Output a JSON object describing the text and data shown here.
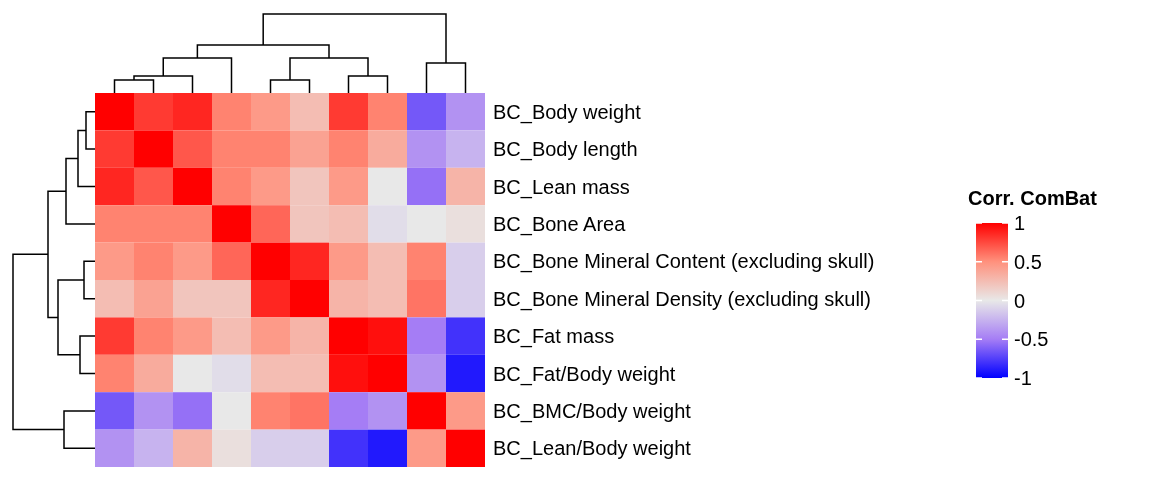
{
  "chart_data": {
    "type": "heatmap",
    "legend_title": "Corr. ComBat",
    "categories": [
      null,
      null,
      null,
      null,
      null,
      null,
      null,
      null,
      null,
      null
    ],
    "y_categories": [
      "BC_Body weight",
      "BC_Body length",
      "BC_Lean mass",
      "BC_Bone Area",
      "BC_Bone Mineral Content (excluding skull)",
      "BC_Bone Mineral Density (excluding skull)",
      "BC_Fat mass",
      "BC_Fat/Body weight",
      "BC_BMC/Body weight",
      "BC_Lean/Body weight"
    ],
    "cells": [
      [
        1,
        0.8,
        0.87,
        0.55,
        0.45,
        0.25,
        0.8,
        0.55,
        -0.65,
        -0.4
      ],
      [
        0.8,
        1,
        0.7,
        0.55,
        0.55,
        0.4,
        0.55,
        0.35,
        -0.4,
        -0.25
      ],
      [
        0.87,
        0.7,
        1,
        0.55,
        0.45,
        0.2,
        0.45,
        0,
        -0.55,
        0.3
      ],
      [
        0.55,
        0.55,
        0.55,
        1,
        0.65,
        0.2,
        0.25,
        -0.05,
        0,
        0.05
      ],
      [
        0.45,
        0.55,
        0.45,
        0.65,
        1,
        0.87,
        0.45,
        0.25,
        0.55,
        -0.12
      ],
      [
        0.25,
        0.4,
        0.2,
        0.2,
        0.87,
        1,
        0.3,
        0.25,
        0.6,
        -0.12
      ],
      [
        0.8,
        0.55,
        0.45,
        0.25,
        0.45,
        0.3,
        1,
        0.95,
        -0.5,
        -0.8
      ],
      [
        0.55,
        0.35,
        0,
        -0.05,
        0.25,
        0.25,
        0.95,
        1,
        -0.4,
        -0.9
      ],
      [
        -0.65,
        -0.4,
        -0.55,
        0,
        0.55,
        0.6,
        -0.5,
        -0.4,
        1,
        0.45
      ],
      [
        -0.4,
        -0.25,
        0.3,
        0.05,
        -0.12,
        -0.12,
        -0.8,
        -0.9,
        0.45,
        1
      ]
    ],
    "clim": [
      -1,
      1
    ],
    "cticks": [
      -1,
      -0.5,
      0,
      0.5,
      1
    ]
  }
}
